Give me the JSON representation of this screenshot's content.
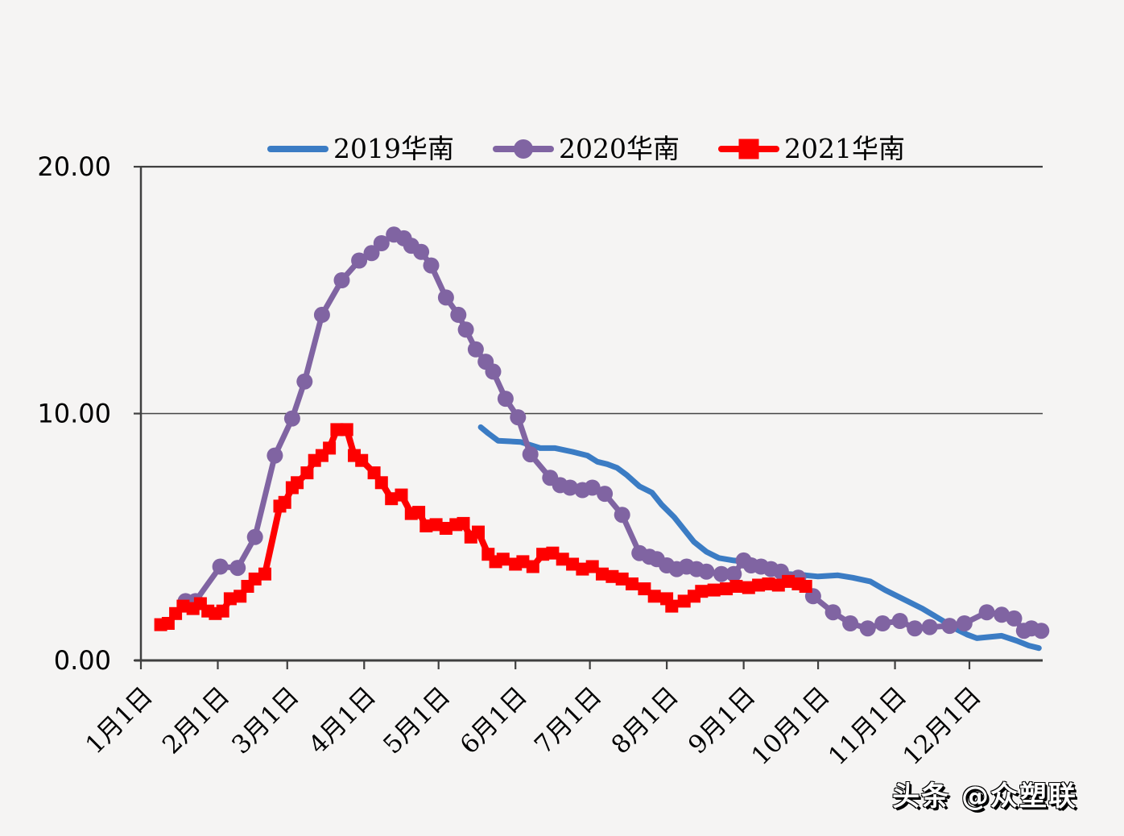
{
  "page": {
    "background": "#f5f4f3",
    "watermark": "头条 @众塑联"
  },
  "chart_data": {
    "type": "line",
    "title": "",
    "x_unit": "day_of_year",
    "y_axis": {
      "min": 0,
      "max": 20,
      "ticks": [
        {
          "value": 0,
          "label": "0.00"
        },
        {
          "value": 10,
          "label": "10.00"
        },
        {
          "value": 20,
          "label": "20.00"
        }
      ],
      "gridline_at": 10
    },
    "x_axis": {
      "month_start_days": [
        0,
        31,
        59,
        90,
        120,
        151,
        181,
        212,
        243,
        273,
        304,
        334
      ],
      "tick_labels": [
        "1月1日",
        "2月1日",
        "3月1日",
        "4月1日",
        "5月1日",
        "6月1日",
        "7月1日",
        "8月1日",
        "9月1日",
        "10月1日",
        "11月1日",
        "12月1日"
      ]
    },
    "legend_position": "top",
    "axis_color": "#3f3f3f",
    "gridline_color": "#444444",
    "series": [
      {
        "name": "2019华南",
        "color": "#3b7cc4",
        "marker": "none",
        "line_width": 7,
        "points": [
          [
            137,
            9.45
          ],
          [
            140,
            9.2
          ],
          [
            144,
            8.9
          ],
          [
            153,
            8.85
          ],
          [
            161,
            8.6
          ],
          [
            167,
            8.6
          ],
          [
            174,
            8.45
          ],
          [
            180,
            8.3
          ],
          [
            184,
            8.05
          ],
          [
            188,
            7.95
          ],
          [
            192,
            7.8
          ],
          [
            196,
            7.5
          ],
          [
            201,
            7.05
          ],
          [
            206,
            6.8
          ],
          [
            210,
            6.3
          ],
          [
            215,
            5.8
          ],
          [
            219,
            5.3
          ],
          [
            223,
            4.8
          ],
          [
            228,
            4.4
          ],
          [
            233,
            4.15
          ],
          [
            239,
            4.05
          ],
          [
            244,
            4.0
          ],
          [
            250,
            3.8
          ],
          [
            255,
            3.6
          ],
          [
            261,
            3.5
          ],
          [
            268,
            3.45
          ],
          [
            273,
            3.4
          ],
          [
            281,
            3.45
          ],
          [
            287,
            3.35
          ],
          [
            294,
            3.2
          ],
          [
            300,
            2.85
          ],
          [
            309,
            2.4
          ],
          [
            315,
            2.1
          ],
          [
            320,
            1.8
          ],
          [
            325,
            1.5
          ],
          [
            329,
            1.25
          ],
          [
            333,
            1.05
          ],
          [
            337,
            0.9
          ],
          [
            342,
            0.95
          ],
          [
            347,
            1.0
          ],
          [
            353,
            0.8
          ],
          [
            358,
            0.6
          ],
          [
            362,
            0.5
          ]
        ]
      },
      {
        "name": "2020华南",
        "color": "#8064a2",
        "marker": "circle",
        "line_width": 7,
        "points": [
          [
            18,
            2.4
          ],
          [
            22,
            2.4
          ],
          [
            32,
            3.8
          ],
          [
            39,
            3.75
          ],
          [
            46,
            5.0
          ],
          [
            54,
            8.3
          ],
          [
            61,
            9.8
          ],
          [
            66,
            11.3
          ],
          [
            73,
            14.0
          ],
          [
            81,
            15.4
          ],
          [
            88,
            16.2
          ],
          [
            93,
            16.5
          ],
          [
            97,
            16.9
          ],
          [
            102,
            17.25
          ],
          [
            106,
            17.1
          ],
          [
            109,
            16.8
          ],
          [
            113,
            16.55
          ],
          [
            117,
            16.0
          ],
          [
            123,
            14.7
          ],
          [
            128,
            14.0
          ],
          [
            131,
            13.4
          ],
          [
            135,
            12.6
          ],
          [
            139,
            12.1
          ],
          [
            142,
            11.7
          ],
          [
            147,
            10.6
          ],
          [
            152,
            9.85
          ],
          [
            157,
            8.35
          ],
          [
            165,
            7.4
          ],
          [
            169,
            7.1
          ],
          [
            173,
            7.0
          ],
          [
            178,
            6.9
          ],
          [
            182,
            7.0
          ],
          [
            187,
            6.75
          ],
          [
            194,
            5.9
          ],
          [
            201,
            4.35
          ],
          [
            205,
            4.2
          ],
          [
            208,
            4.1
          ],
          [
            212,
            3.85
          ],
          [
            216,
            3.7
          ],
          [
            220,
            3.8
          ],
          [
            224,
            3.7
          ],
          [
            228,
            3.6
          ],
          [
            234,
            3.5
          ],
          [
            239,
            3.5
          ],
          [
            243,
            4.05
          ],
          [
            246,
            3.85
          ],
          [
            250,
            3.8
          ],
          [
            254,
            3.7
          ],
          [
            258,
            3.6
          ],
          [
            265,
            3.35
          ],
          [
            271,
            2.6
          ],
          [
            279,
            1.95
          ],
          [
            286,
            1.5
          ],
          [
            293,
            1.3
          ],
          [
            299,
            1.5
          ],
          [
            306,
            1.6
          ],
          [
            312,
            1.3
          ],
          [
            318,
            1.35
          ],
          [
            326,
            1.4
          ],
          [
            332,
            1.5
          ],
          [
            341,
            1.95
          ],
          [
            347,
            1.85
          ],
          [
            352,
            1.7
          ],
          [
            356,
            1.2
          ],
          [
            359,
            1.3
          ],
          [
            363,
            1.2
          ]
        ]
      },
      {
        "name": "2021华南",
        "color": "#fe0000",
        "marker": "square",
        "line_width": 8,
        "points": [
          [
            8,
            1.45
          ],
          [
            11,
            1.5
          ],
          [
            14,
            1.9
          ],
          [
            17,
            2.2
          ],
          [
            21,
            2.1
          ],
          [
            24,
            2.3
          ],
          [
            27,
            2.0
          ],
          [
            30,
            1.9
          ],
          [
            33,
            2.0
          ],
          [
            36,
            2.5
          ],
          [
            40,
            2.6
          ],
          [
            43,
            3.0
          ],
          [
            46,
            3.3
          ],
          [
            50,
            3.5
          ],
          [
            56,
            6.25
          ],
          [
            58,
            6.4
          ],
          [
            61,
            7.0
          ],
          [
            63,
            7.2
          ],
          [
            67,
            7.6
          ],
          [
            70,
            8.1
          ],
          [
            73,
            8.3
          ],
          [
            76,
            8.6
          ],
          [
            79,
            9.35
          ],
          [
            83,
            9.35
          ],
          [
            86,
            8.3
          ],
          [
            89,
            8.1
          ],
          [
            94,
            7.6
          ],
          [
            97,
            7.2
          ],
          [
            101,
            6.55
          ],
          [
            105,
            6.7
          ],
          [
            109,
            5.95
          ],
          [
            112,
            6.0
          ],
          [
            115,
            5.45
          ],
          [
            119,
            5.5
          ],
          [
            123,
            5.35
          ],
          [
            127,
            5.5
          ],
          [
            130,
            5.55
          ],
          [
            133,
            5.0
          ],
          [
            136,
            5.2
          ],
          [
            140,
            4.3
          ],
          [
            143,
            4.0
          ],
          [
            146,
            4.1
          ],
          [
            151,
            3.9
          ],
          [
            154,
            4.0
          ],
          [
            158,
            3.8
          ],
          [
            162,
            4.3
          ],
          [
            166,
            4.35
          ],
          [
            170,
            4.1
          ],
          [
            174,
            3.9
          ],
          [
            178,
            3.7
          ],
          [
            182,
            3.8
          ],
          [
            186,
            3.5
          ],
          [
            190,
            3.4
          ],
          [
            194,
            3.3
          ],
          [
            198,
            3.1
          ],
          [
            203,
            2.9
          ],
          [
            207,
            2.6
          ],
          [
            212,
            2.5
          ],
          [
            214,
            2.2
          ],
          [
            219,
            2.4
          ],
          [
            223,
            2.6
          ],
          [
            226,
            2.8
          ],
          [
            231,
            2.85
          ],
          [
            236,
            2.9
          ],
          [
            240,
            3.0
          ],
          [
            245,
            2.95
          ],
          [
            249,
            3.05
          ],
          [
            253,
            3.1
          ],
          [
            257,
            3.05
          ],
          [
            261,
            3.2
          ],
          [
            265,
            3.1
          ],
          [
            268,
            3.0
          ]
        ]
      }
    ]
  }
}
